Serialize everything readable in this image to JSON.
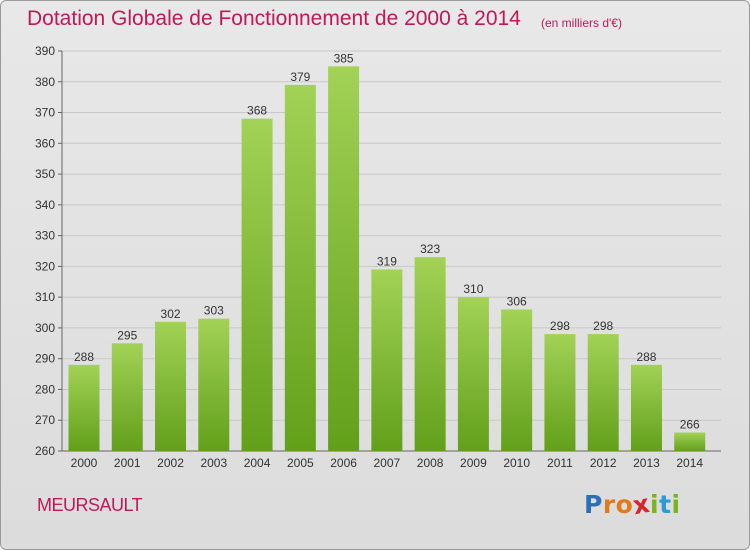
{
  "header": {
    "title": "Dotation Globale de Fonctionnement de 2000 à 2014",
    "unit": "(en milliers d'€)"
  },
  "footer": {
    "commune": "MEURSAULT",
    "logo_letters": [
      {
        "char": "P",
        "color": "#2b6fb8"
      },
      {
        "char": "r",
        "color": "#e07b1c"
      },
      {
        "char": "o",
        "color": "#e07b1c"
      },
      {
        "char": "x",
        "color": "#d8262e"
      },
      {
        "char": "i",
        "color": "#7ab51d"
      },
      {
        "char": "t",
        "color": "#2b9ad6"
      },
      {
        "char": "i",
        "color": "#7ab51d"
      }
    ]
  },
  "colors": {
    "bar_top": "#a2d256",
    "bar_bottom": "#62a01a",
    "grid": "#c8c8c8",
    "accent": "#c0185a"
  },
  "chart_data": {
    "type": "bar",
    "title": "Dotation Globale de Fonctionnement de 2000 à 2014",
    "subtitle": "(en milliers d'€)",
    "xlabel": "",
    "ylabel": "",
    "categories": [
      "2000",
      "2001",
      "2002",
      "2003",
      "2004",
      "2005",
      "2006",
      "2007",
      "2008",
      "2009",
      "2010",
      "2011",
      "2012",
      "2013",
      "2014"
    ],
    "values": [
      288,
      295,
      302,
      303,
      368,
      379,
      385,
      319,
      323,
      310,
      306,
      298,
      298,
      288,
      266
    ],
    "ylim": [
      260,
      390
    ],
    "yticks": [
      260,
      270,
      280,
      290,
      300,
      310,
      320,
      330,
      340,
      350,
      360,
      370,
      380,
      390
    ],
    "grid": true,
    "data_labels": true
  }
}
